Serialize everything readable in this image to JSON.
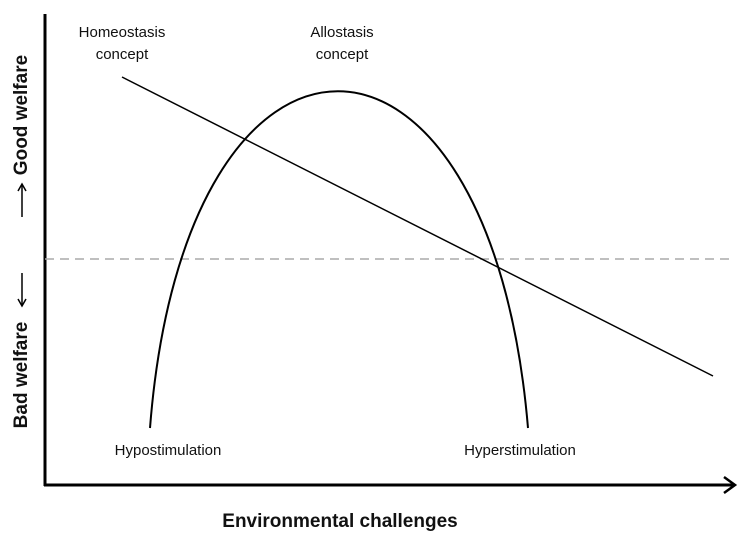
{
  "y_axis": {
    "top": "Good welfare",
    "bottom": "Bad welfare"
  },
  "x_axis": {
    "label": "Environmental challenges"
  },
  "concepts": [
    {
      "lines": [
        "Homeostasis",
        "concept"
      ]
    },
    {
      "lines": [
        "Allostasis",
        "concept"
      ]
    }
  ],
  "zones": [
    "Hypostimulation",
    "Hyperstimulation"
  ]
}
